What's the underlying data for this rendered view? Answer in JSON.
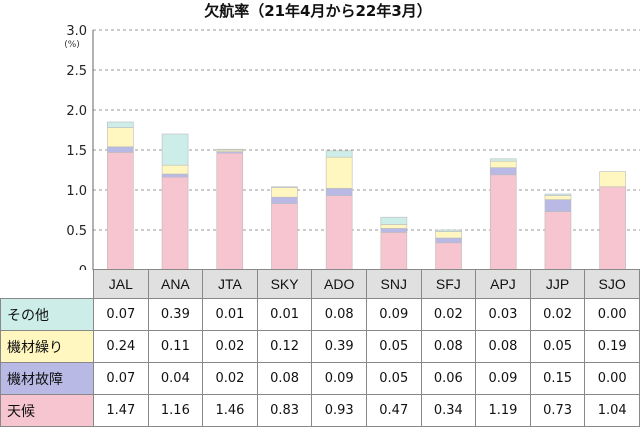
{
  "chart_data": {
    "type": "bar",
    "stacked": true,
    "title": "欠航率（21年4月から22年3月）",
    "yunit": "(%)",
    "ylim": [
      0,
      3.0
    ],
    "yticks": [
      "0",
      "0.5",
      "1.0",
      "1.5",
      "2.0",
      "2.5",
      "3.0"
    ],
    "grid": "horizontal dashed",
    "categories": [
      "JAL",
      "ANA",
      "JTA",
      "SKY",
      "ADO",
      "SNJ",
      "SFJ",
      "APJ",
      "JJP",
      "SJO"
    ],
    "series": [
      {
        "name": "天候",
        "color": "#f7c5d0",
        "values": [
          1.47,
          1.16,
          1.46,
          0.83,
          0.93,
          0.47,
          0.34,
          1.19,
          0.73,
          1.04
        ],
        "labels": [
          "1.47",
          "1.16",
          "1.46",
          "0.83",
          "0.93",
          "0.47",
          "0.34",
          "1.19",
          "0.73",
          "1.04"
        ]
      },
      {
        "name": "機材故障",
        "color": "#b9b9e6",
        "values": [
          0.07,
          0.04,
          0.02,
          0.08,
          0.09,
          0.05,
          0.06,
          0.09,
          0.15,
          0.0
        ],
        "labels": [
          "0.07",
          "0.04",
          "0.02",
          "0.08",
          "0.09",
          "0.05",
          "0.06",
          "0.09",
          "0.15",
          "0.00"
        ]
      },
      {
        "name": "機材繰り",
        "color": "#fff7bf",
        "values": [
          0.24,
          0.11,
          0.02,
          0.12,
          0.39,
          0.05,
          0.08,
          0.08,
          0.05,
          0.19
        ],
        "labels": [
          "0.24",
          "0.11",
          "0.02",
          "0.12",
          "0.39",
          "0.05",
          "0.08",
          "0.08",
          "0.05",
          "0.19"
        ]
      },
      {
        "name": "その他",
        "color": "#cdeee8",
        "values": [
          0.07,
          0.39,
          0.01,
          0.01,
          0.08,
          0.09,
          0.02,
          0.03,
          0.02,
          0.0
        ],
        "labels": [
          "0.07",
          "0.39",
          "0.01",
          "0.01",
          "0.08",
          "0.09",
          "0.02",
          "0.03",
          "0.02",
          "0.00"
        ]
      }
    ],
    "table_row_order": [
      "その他",
      "機材繰り",
      "機材故障",
      "天候"
    ]
  }
}
